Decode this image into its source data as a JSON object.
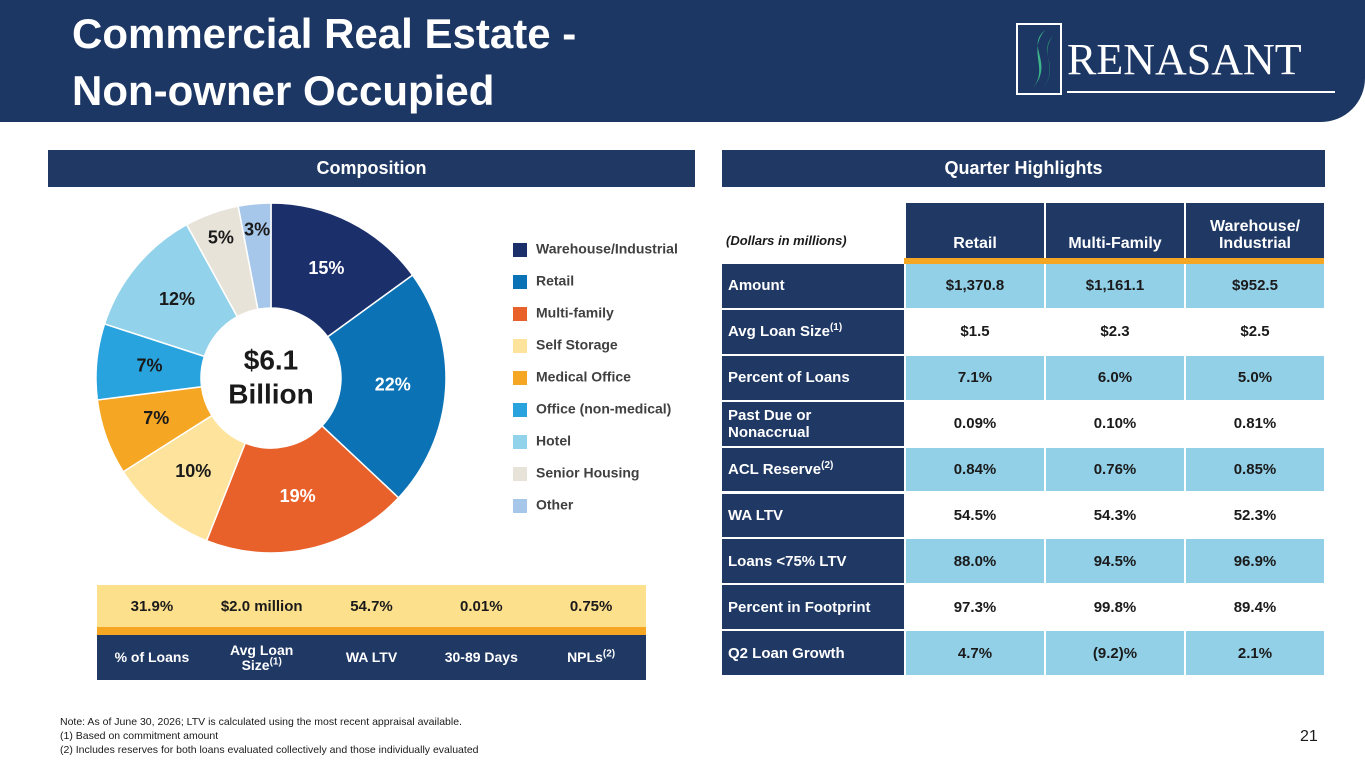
{
  "header": {
    "title_lines": [
      "Commercial Real Estate -",
      "Non-owner Occupied"
    ],
    "logo": "RENASANT"
  },
  "chart_data": {
    "type": "pie",
    "title": "Composition",
    "center_label": [
      "$6.1",
      "Billion"
    ],
    "categories": [
      "Warehouse/Industrial",
      "Retail",
      "Multi-family",
      "Self Storage",
      "Medical Office",
      "Office (non-medical)",
      "Hotel",
      "Senior Housing",
      "Other"
    ],
    "values": [
      15,
      22,
      19,
      10,
      7,
      7,
      12,
      5,
      3
    ],
    "value_labels": [
      "15%",
      "22%",
      "19%",
      "10%",
      "7%",
      "7%",
      "12%",
      "5%",
      "3%"
    ],
    "colors": [
      "#1b2f6b",
      "#0b72b5",
      "#e8602a",
      "#fde39b",
      "#f5a623",
      "#29a3dd",
      "#92d2ea",
      "#e7e3d9",
      "#a6c6ea"
    ],
    "label_colors": [
      "#ffffff",
      "#ffffff",
      "#ffffff",
      "#1a1a1a",
      "#1a1a1a",
      "#1a1a1a",
      "#1a1a1a",
      "#1a1a1a",
      "#1a1a1a"
    ],
    "donut": true
  },
  "summary": {
    "values": [
      "31.9%",
      "$2.0 million",
      "54.7%",
      "0.01%",
      "0.75%"
    ],
    "labels": [
      {
        "label": "% of Loans"
      },
      {
        "label": "Avg Loan Size",
        "note": "(1)"
      },
      {
        "label": "WA LTV"
      },
      {
        "label": "30-89 Days"
      },
      {
        "label": "NPLs",
        "note": "(2)"
      }
    ]
  },
  "highlights": {
    "title": "Quarter Highlights",
    "header": [
      "(Dollars in millions)",
      "Retail",
      "Multi-Family",
      "Warehouse/ Industrial"
    ],
    "rows": [
      {
        "label": "Amount",
        "cells": [
          "$1,370.8",
          "$1,161.1",
          "$952.5"
        ]
      },
      {
        "label": "Avg Loan Size",
        "note": "(1)",
        "cells": [
          "$1.5",
          "$2.3",
          "$2.5"
        ]
      },
      {
        "label": "Percent of Loans",
        "cells": [
          "7.1%",
          "6.0%",
          "5.0%"
        ]
      },
      {
        "label": "Past Due or Nonaccrual",
        "cells": [
          "0.09%",
          "0.10%",
          "0.81%"
        ]
      },
      {
        "label": "ACL Reserve",
        "note": "(2)",
        "cells": [
          "0.84%",
          "0.76%",
          "0.85%"
        ]
      },
      {
        "label": "WA LTV",
        "cells": [
          "54.5%",
          "54.3%",
          "52.3%"
        ]
      },
      {
        "label": "Loans <75% LTV",
        "cells": [
          "88.0%",
          "94.5%",
          "96.9%"
        ]
      },
      {
        "label": "Percent in Footprint",
        "cells": [
          "97.3%",
          "99.8%",
          "89.4%"
        ]
      },
      {
        "label": "Q2 Loan Growth",
        "cells": [
          "4.7%",
          "(9.2)%",
          "2.1%"
        ]
      }
    ]
  },
  "notes": [
    "Note:  As of June 30, 2026; LTV is calculated using the most recent appraisal available.",
    "(1)  Based on commitment amount",
    "(2)  Includes reserves for both loans evaluated collectively and those individually evaluated"
  ],
  "page_number": "21"
}
